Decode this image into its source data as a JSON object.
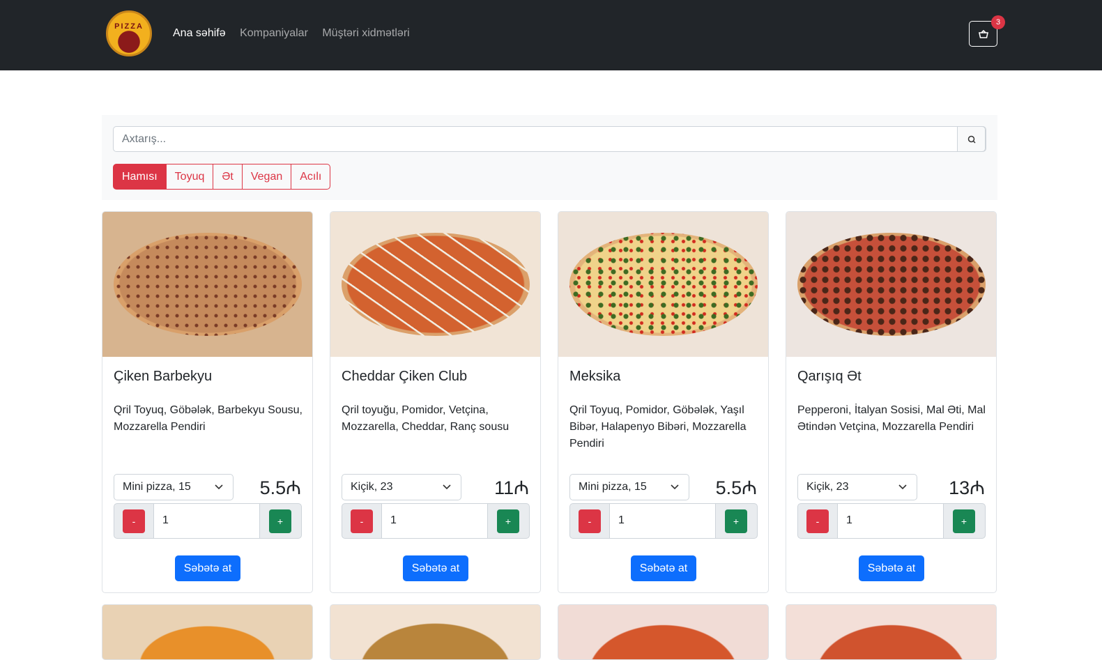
{
  "navbar": {
    "logo": "PIZZA",
    "links": [
      "Ana səhifə",
      "Kompaniyalar",
      "Müştəri xidmətləri"
    ],
    "cart_count": 3
  },
  "search": {
    "placeholder": "Axtarış..."
  },
  "filters": [
    "Hamısı",
    "Toyuq",
    "Ət",
    "Vegan",
    "Acılı"
  ],
  "cards": [
    {
      "title": "Çiken Barbekyu",
      "description": "Qril Toyuq, Göbələk, Barbekyu Sousu, Mozzarella Pendiri",
      "size": "Mini pizza, 15",
      "price": "5.5₼",
      "minus": "-",
      "quantity": 1,
      "plus": "+",
      "button": "Səbətə at"
    },
    {
      "title": "Cheddar Çiken Club",
      "description": "Qril toyuğu, Pomidor, Vetçina, Mozzarella, Cheddar, Ranç sousu",
      "size": "Kiçik, 23",
      "price": "11₼",
      "minus": "-",
      "quantity": 1,
      "plus": "+",
      "button": "Səbətə at"
    },
    {
      "title": "Meksika",
      "description": "Qril Toyuq, Pomidor, Göbələk, Yaşıl Bibər, Halapenyo Bibəri, Mozzarella Pendiri",
      "size": "Mini pizza, 15",
      "price": "5.5₼",
      "minus": "-",
      "quantity": 1,
      "plus": "+",
      "button": "Səbətə at"
    },
    {
      "title": "Qarışıq Ət",
      "description": "Pepperoni, İtalyan Sosisi, Mal Əti, Mal Ətindən Vetçina, Mozzarella Pendiri",
      "size": "Kiçik, 23",
      "price": "13₼",
      "minus": "-",
      "quantity": 1,
      "plus": "+",
      "button": "Səbətə at"
    }
  ]
}
